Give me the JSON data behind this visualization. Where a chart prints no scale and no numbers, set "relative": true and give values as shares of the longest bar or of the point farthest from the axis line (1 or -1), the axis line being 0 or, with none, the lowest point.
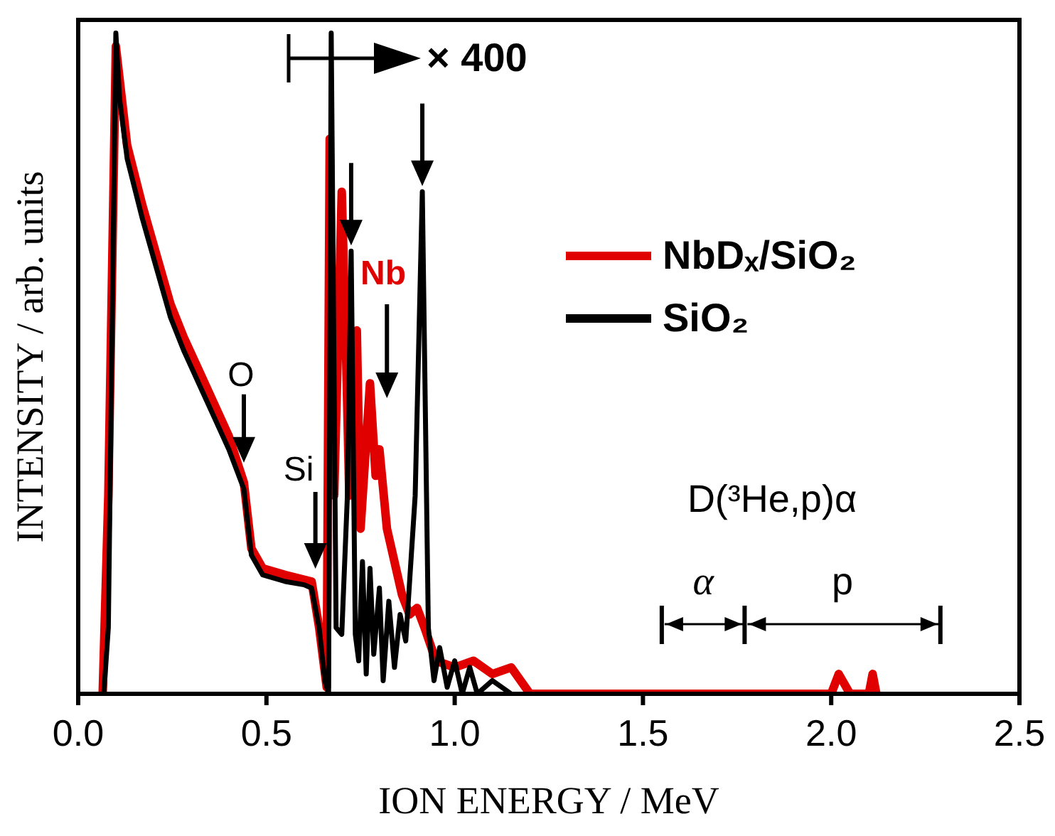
{
  "chart_data": {
    "type": "line",
    "relative": true,
    "xlabel": "ION ENERGY / MeV",
    "ylabel": "INTENSITY / arb. units",
    "xlim": [
      0,
      2.5
    ],
    "xticks": [
      {
        "value": 0,
        "label": "0.0"
      },
      {
        "value": 0.5,
        "label": "0.5"
      },
      {
        "value": 1,
        "label": "1.0"
      },
      {
        "value": 1.5,
        "label": "1.5"
      },
      {
        "value": 2,
        "label": "2.0"
      },
      {
        "value": 2.5,
        "label": "2.5"
      }
    ],
    "grid": false,
    "legend": "right",
    "marker": "none",
    "line_style": "solid",
    "annotations": [
      {
        "text": "O",
        "x": 0.44,
        "y": 0.35
      },
      "Si",
      "Nb",
      "× 400",
      "D(³He,p)α",
      "α",
      "p"
    ],
    "series": [
      {
        "name": "NbDₓ/SiO₂",
        "color": "#e00000",
        "x": [
          0.065,
          0.08,
          0.1,
          0.13,
          0.17,
          0.21,
          0.245,
          0.28,
          0.32,
          0.36,
          0.4,
          0.44,
          0.46,
          0.49,
          0.55,
          0.62,
          0.64,
          0.66,
          0.668,
          0.68,
          0.7,
          0.71,
          0.72,
          0.74,
          0.75,
          0.775,
          0.79,
          0.8,
          0.82,
          0.84,
          0.86,
          0.88,
          0.9,
          0.92,
          0.95,
          1.0,
          1.05,
          1.1,
          1.15,
          1.2,
          2.0,
          2.02,
          2.05,
          2.1,
          2.11,
          2.12
        ],
        "values": [
          0,
          0.3,
          0.98,
          0.83,
          0.74,
          0.66,
          0.59,
          0.54,
          0.49,
          0.44,
          0.39,
          0.32,
          0.22,
          0.19,
          0.18,
          0.17,
          0.1,
          0.01,
          0.84,
          0.3,
          0.76,
          0.55,
          0.3,
          0.55,
          0.25,
          0.47,
          0.33,
          0.37,
          0.25,
          0.2,
          0.15,
          0.12,
          0.13,
          0.1,
          0.05,
          0.04,
          0.05,
          0.03,
          0.04,
          0,
          0,
          0.03,
          0,
          0,
          0.03,
          0
        ]
      },
      {
        "name": "SiO₂",
        "color": "#000000",
        "x": [
          0.068,
          0.08,
          0.1,
          0.11,
          0.13,
          0.17,
          0.21,
          0.245,
          0.28,
          0.32,
          0.36,
          0.4,
          0.44,
          0.46,
          0.49,
          0.55,
          0.6,
          0.62,
          0.64,
          0.655,
          0.665,
          0.672,
          0.685,
          0.7,
          0.715,
          0.725,
          0.736,
          0.745,
          0.755,
          0.765,
          0.775,
          0.785,
          0.8,
          0.81,
          0.825,
          0.84,
          0.855,
          0.87,
          0.895,
          0.914,
          0.93,
          0.945,
          0.96,
          0.98,
          1.0,
          1.02,
          1.04,
          1.06,
          1.1,
          1.15
        ],
        "values": [
          0,
          0.1,
          1,
          0.9,
          0.81,
          0.72,
          0.64,
          0.57,
          0.52,
          0.47,
          0.42,
          0.37,
          0.31,
          0.21,
          0.18,
          0.17,
          0.165,
          0.16,
          0.1,
          0.02,
          0,
          1,
          0.1,
          0.09,
          0.3,
          0.67,
          0.09,
          0.05,
          0.2,
          0.03,
          0.19,
          0.06,
          0.16,
          0.02,
          0.14,
          0.04,
          0.12,
          0.08,
          0.3,
          0.76,
          0.1,
          0.02,
          0.07,
          0.01,
          0.05,
          0,
          0.04,
          0,
          0.02,
          0
        ]
      }
    ]
  }
}
